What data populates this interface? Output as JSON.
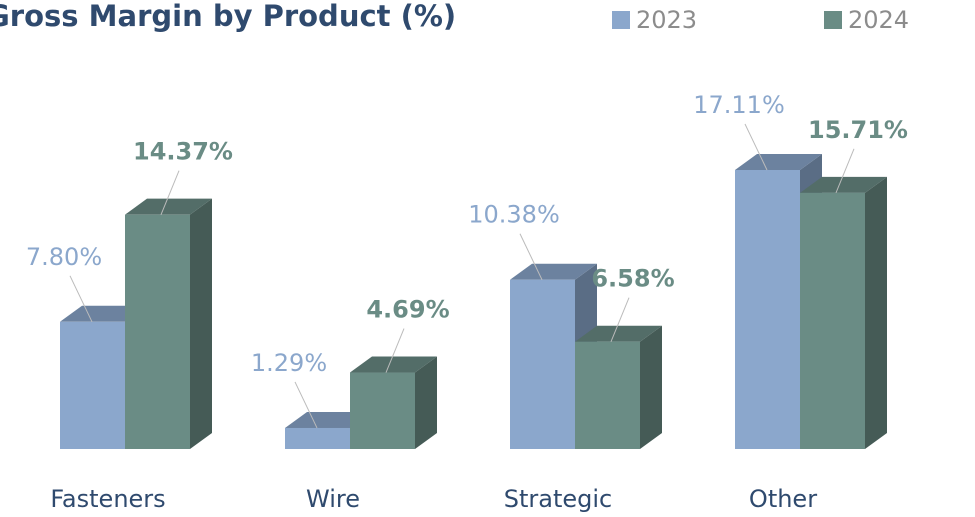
{
  "chart_data": {
    "type": "bar3d",
    "title": "Gross Margin by Product (%)",
    "categories": [
      "Fasteners",
      "Wire",
      "Strategic",
      "Other"
    ],
    "series": [
      {
        "name": "2023",
        "color": "#8ba7cc",
        "values": [
          7.8,
          1.29,
          10.38,
          17.11
        ],
        "value_labels": [
          "7.80%",
          "1.29%",
          "10.38%",
          "17.11%"
        ]
      },
      {
        "name": "2024",
        "color": "#6a8c85",
        "values": [
          14.37,
          4.69,
          6.58,
          15.71
        ],
        "value_labels": [
          "14.37%",
          "4.69%",
          "6.58%",
          "15.71%"
        ]
      }
    ],
    "legend": "top-right"
  }
}
